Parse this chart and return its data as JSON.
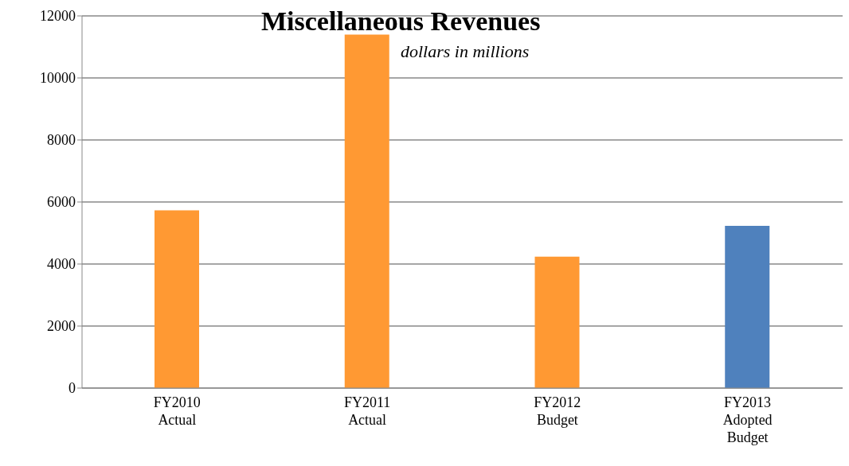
{
  "chart_data": {
    "type": "bar",
    "title": "Miscellaneous Revenues",
    "subtitle": "dollars in millions",
    "categories": [
      "FY2010\nActual",
      "FY2011\nActual",
      "FY2012\nBudget",
      "FY2013\nAdopted\nBudget"
    ],
    "values": [
      5730,
      11400,
      4240,
      5230
    ],
    "colors": [
      "#ff9933",
      "#ff9933",
      "#ff9933",
      "#4f81bd"
    ],
    "ylim": [
      0,
      12000
    ],
    "yticks": [
      0,
      2000,
      4000,
      6000,
      8000,
      10000,
      12000
    ],
    "grid": "y"
  }
}
